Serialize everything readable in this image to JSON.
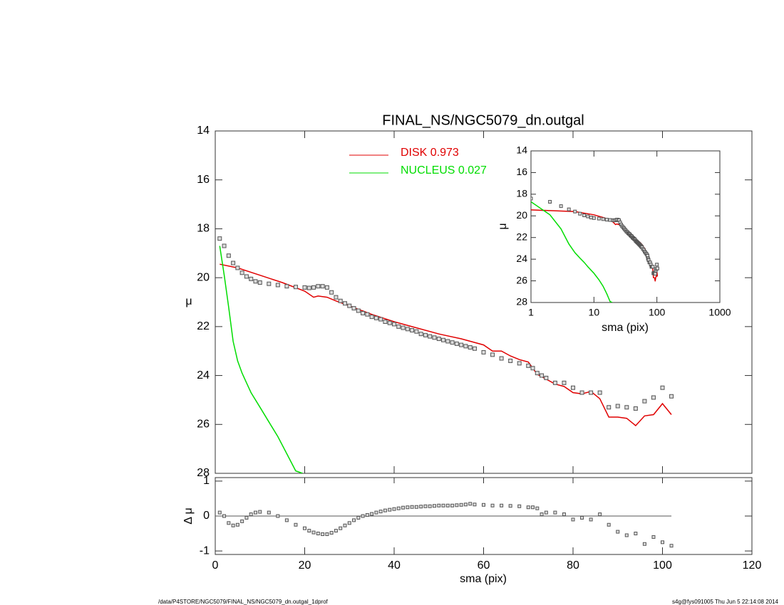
{
  "chart_data": [
    {
      "type": "scatter",
      "title": "FINAL_NS/NGC5079_dn.outgal",
      "ylabel": "μ",
      "xlim": [
        0,
        120
      ],
      "ylim": [
        14,
        28
      ],
      "yticks": [
        14,
        16,
        18,
        20,
        22,
        24,
        26,
        28
      ],
      "observed": {
        "color": "#555555",
        "x": [
          1,
          2,
          3,
          4,
          5,
          6,
          7,
          8,
          9,
          10,
          12,
          14,
          16,
          18,
          20,
          21,
          22,
          23,
          24,
          25,
          26,
          27,
          28,
          29,
          30,
          31,
          32,
          33,
          34,
          35,
          36,
          37,
          38,
          39,
          40,
          41,
          42,
          43,
          44,
          45,
          46,
          47,
          48,
          49,
          50,
          51,
          52,
          53,
          54,
          55,
          56,
          57,
          58,
          60,
          62,
          64,
          66,
          68,
          70,
          71,
          72,
          73,
          74,
          76,
          78,
          80,
          82,
          84,
          86,
          88,
          90,
          92,
          94,
          96,
          98,
          100,
          102
        ],
        "values": [
          18.4,
          18.7,
          19.1,
          19.4,
          19.6,
          19.8,
          19.95,
          20.05,
          20.15,
          20.2,
          20.25,
          20.3,
          20.35,
          20.38,
          20.4,
          20.42,
          20.4,
          20.35,
          20.35,
          20.4,
          20.6,
          20.8,
          20.95,
          21.05,
          21.15,
          21.25,
          21.35,
          21.45,
          21.5,
          21.6,
          21.65,
          21.7,
          21.8,
          21.85,
          21.9,
          22.0,
          22.05,
          22.1,
          22.15,
          22.2,
          22.3,
          22.35,
          22.4,
          22.45,
          22.5,
          22.55,
          22.6,
          22.65,
          22.7,
          22.75,
          22.8,
          22.85,
          22.9,
          23.05,
          23.15,
          23.3,
          23.4,
          23.5,
          23.6,
          23.7,
          23.9,
          24.0,
          24.1,
          24.3,
          24.3,
          24.5,
          24.7,
          24.7,
          24.7,
          25.3,
          25.25,
          25.3,
          25.35,
          25.05,
          24.9,
          24.5,
          24.85
        ]
      },
      "series": [
        {
          "name": "DISK  0.973",
          "color": "#e00000",
          "x": [
            1,
            5,
            10,
            15,
            20,
            22,
            23,
            25,
            27,
            30,
            35,
            40,
            45,
            50,
            55,
            60,
            62,
            64,
            66,
            68,
            70,
            72,
            74,
            76,
            78,
            80,
            82,
            84,
            86,
            88,
            90,
            92,
            94,
            96,
            98,
            100,
            102
          ],
          "values": [
            19.45,
            19.6,
            19.9,
            20.2,
            20.55,
            20.8,
            20.75,
            20.8,
            20.95,
            21.15,
            21.5,
            21.8,
            22.05,
            22.3,
            22.5,
            22.75,
            23.0,
            23.0,
            23.2,
            23.35,
            23.45,
            23.95,
            24.15,
            24.35,
            24.45,
            24.7,
            24.75,
            24.65,
            24.95,
            25.7,
            25.7,
            25.75,
            26.05,
            25.65,
            25.6,
            25.15,
            25.6
          ]
        },
        {
          "name": "NUCLEUS  0.027",
          "color": "#00dd00",
          "x": [
            1,
            2,
            3,
            4,
            5,
            6,
            7,
            8,
            10,
            12,
            14,
            16,
            18,
            19.5
          ],
          "values": [
            18.7,
            19.9,
            21.2,
            22.6,
            23.4,
            23.9,
            24.3,
            24.7,
            25.3,
            25.9,
            26.5,
            27.2,
            27.9,
            28
          ]
        }
      ]
    },
    {
      "type": "residual",
      "xlabel": "sma (pix)",
      "ylabel": "Δ μ",
      "xlim": [
        0,
        120
      ],
      "xticks": [
        0,
        20,
        40,
        60,
        80,
        100,
        120
      ],
      "ylim": [
        -1.1,
        1.1
      ],
      "yticks": [
        1,
        0,
        -1
      ],
      "values": [
        0.1,
        0.0,
        -0.2,
        -0.27,
        -0.25,
        -0.15,
        -0.05,
        0.05,
        0.1,
        0.12,
        0.1,
        0.0,
        -0.12,
        -0.25,
        -0.35,
        -0.42,
        -0.47,
        -0.5,
        -0.52,
        -0.52,
        -0.48,
        -0.42,
        -0.35,
        -0.27,
        -0.2,
        -0.12,
        -0.05,
        0.0,
        0.03,
        0.06,
        0.1,
        0.13,
        0.16,
        0.18,
        0.2,
        0.22,
        0.24,
        0.25,
        0.26,
        0.26,
        0.27,
        0.28,
        0.28,
        0.29,
        0.3,
        0.3,
        0.3,
        0.3,
        0.31,
        0.32,
        0.33,
        0.35,
        0.33,
        0.32,
        0.3,
        0.3,
        0.29,
        0.28,
        0.25,
        0.25,
        0.22,
        0.05,
        0.1,
        0.1,
        0.05,
        -0.1,
        -0.05,
        -0.1,
        0.05,
        -0.25,
        -0.45,
        -0.55,
        -0.5,
        -0.8,
        -0.6,
        -0.75,
        -0.85
      ]
    },
    {
      "type": "inset",
      "xlabel": "sma (pix)",
      "ylabel": "μ",
      "log_x": true,
      "xlim": [
        1,
        1000
      ],
      "xticks": [
        1,
        10,
        100,
        1000
      ],
      "ylim": [
        14,
        28
      ],
      "yticks": [
        14,
        16,
        18,
        20,
        22,
        24,
        26,
        28
      ]
    }
  ],
  "footer": {
    "left": "/data/P4STORE/NGC5079/FINAL_NS/NGC5079_dn.outgal_1dprof",
    "right": "s4g@fys091005  Thu Jun  5 22:14:08 2014"
  }
}
